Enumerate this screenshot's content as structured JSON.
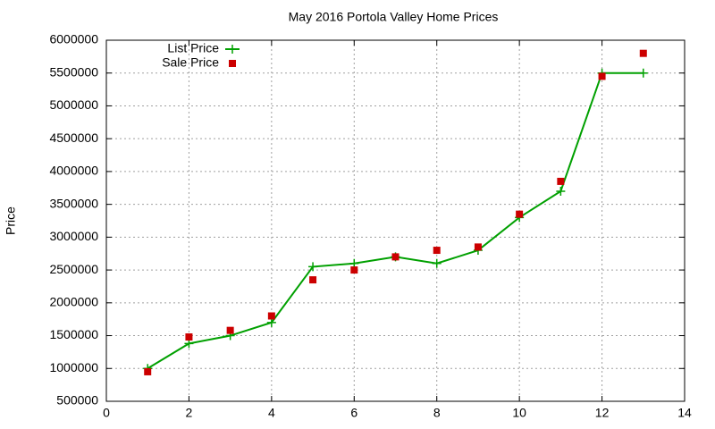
{
  "chart_data": {
    "type": "line",
    "title": "May 2016 Portola Valley Home Prices",
    "y_label": "Price",
    "x": [
      1,
      2,
      3,
      4,
      5,
      6,
      7,
      8,
      9,
      10,
      11,
      12,
      13
    ],
    "series": [
      {
        "name": "List Price",
        "color": "#00a000",
        "mode": "lines+markers",
        "values": [
          1000000,
          1380000,
          1500000,
          1700000,
          2550000,
          2600000,
          2700000,
          2600000,
          2800000,
          3300000,
          3700000,
          5500000,
          5500000
        ]
      },
      {
        "name": "Sale Price",
        "color": "#cc0000",
        "mode": "markers",
        "values": [
          950000,
          1480000,
          1580000,
          1800000,
          2350000,
          2500000,
          2700000,
          2800000,
          2850000,
          3350000,
          3850000,
          5450000,
          5800000
        ]
      }
    ],
    "xlim": [
      0,
      14
    ],
    "xticks": [
      0,
      2,
      4,
      6,
      8,
      10,
      12,
      14
    ],
    "ylim": [
      500000,
      6000000
    ],
    "yticks": [
      500000,
      1000000,
      1500000,
      2000000,
      2500000,
      3000000,
      3500000,
      4000000,
      4500000,
      5000000,
      5500000,
      6000000
    ],
    "grid": true,
    "legend": "top-left"
  }
}
